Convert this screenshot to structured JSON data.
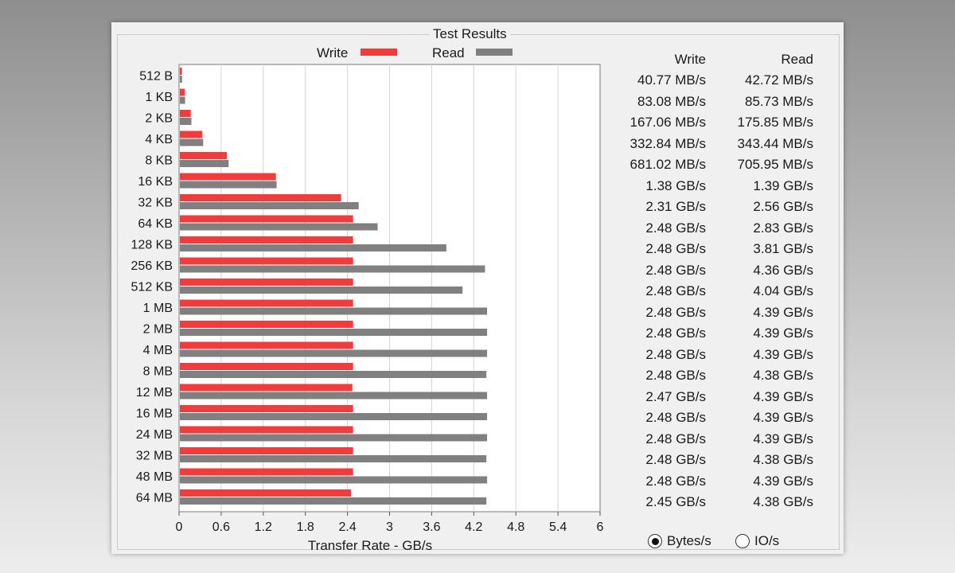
{
  "group_title": "Test Results",
  "legend": {
    "write": "Write",
    "read": "Read"
  },
  "columns": {
    "write": "Write",
    "read": "Read"
  },
  "radio": {
    "bytes_label": "Bytes/s",
    "ios_label": "IO/s",
    "selected": "bytes"
  },
  "colors": {
    "write": "#f03c3c",
    "read": "#808080",
    "grid": "#d4d4d4"
  },
  "rows": [
    {
      "size": "512 B",
      "write_text": "40.77 MB/s",
      "read_text": "42.72 MB/s"
    },
    {
      "size": "1 KB",
      "write_text": "83.08 MB/s",
      "read_text": "85.73 MB/s"
    },
    {
      "size": "2 KB",
      "write_text": "167.06 MB/s",
      "read_text": "175.85 MB/s"
    },
    {
      "size": "4 KB",
      "write_text": "332.84 MB/s",
      "read_text": "343.44 MB/s"
    },
    {
      "size": "8 KB",
      "write_text": "681.02 MB/s",
      "read_text": "705.95 MB/s"
    },
    {
      "size": "16 KB",
      "write_text": "1.38 GB/s",
      "read_text": "1.39 GB/s"
    },
    {
      "size": "32 KB",
      "write_text": "2.31 GB/s",
      "read_text": "2.56 GB/s"
    },
    {
      "size": "64 KB",
      "write_text": "2.48 GB/s",
      "read_text": "2.83 GB/s"
    },
    {
      "size": "128 KB",
      "write_text": "2.48 GB/s",
      "read_text": "3.81 GB/s"
    },
    {
      "size": "256 KB",
      "write_text": "2.48 GB/s",
      "read_text": "4.36 GB/s"
    },
    {
      "size": "512 KB",
      "write_text": "2.48 GB/s",
      "read_text": "4.04 GB/s"
    },
    {
      "size": "1 MB",
      "write_text": "2.48 GB/s",
      "read_text": "4.39 GB/s"
    },
    {
      "size": "2 MB",
      "write_text": "2.48 GB/s",
      "read_text": "4.39 GB/s"
    },
    {
      "size": "4 MB",
      "write_text": "2.48 GB/s",
      "read_text": "4.39 GB/s"
    },
    {
      "size": "8 MB",
      "write_text": "2.48 GB/s",
      "read_text": "4.38 GB/s"
    },
    {
      "size": "12 MB",
      "write_text": "2.47 GB/s",
      "read_text": "4.39 GB/s"
    },
    {
      "size": "16 MB",
      "write_text": "2.48 GB/s",
      "read_text": "4.39 GB/s"
    },
    {
      "size": "24 MB",
      "write_text": "2.48 GB/s",
      "read_text": "4.39 GB/s"
    },
    {
      "size": "32 MB",
      "write_text": "2.48 GB/s",
      "read_text": "4.38 GB/s"
    },
    {
      "size": "48 MB",
      "write_text": "2.48 GB/s",
      "read_text": "4.39 GB/s"
    },
    {
      "size": "64 MB",
      "write_text": "2.45 GB/s",
      "read_text": "4.38 GB/s"
    }
  ],
  "chart_data": {
    "type": "bar",
    "orientation": "horizontal",
    "title": "",
    "xlabel": "Transfer Rate - GB/s",
    "ylabel": "",
    "xlim": [
      0,
      6
    ],
    "xticks": [
      "0",
      "0.6",
      "1.2",
      "1.8",
      "2.4",
      "3",
      "3.6",
      "4.2",
      "4.8",
      "5.4",
      "6"
    ],
    "grid": true,
    "legend_position": "top",
    "categories": [
      "512 B",
      "1 KB",
      "2 KB",
      "4 KB",
      "8 KB",
      "16 KB",
      "32 KB",
      "64 KB",
      "128 KB",
      "256 KB",
      "512 KB",
      "1 MB",
      "2 MB",
      "4 MB",
      "8 MB",
      "12 MB",
      "16 MB",
      "24 MB",
      "32 MB",
      "48 MB",
      "64 MB"
    ],
    "series": [
      {
        "name": "Write",
        "values": [
          0.04077,
          0.08308,
          0.16706,
          0.33284,
          0.68102,
          1.38,
          2.31,
          2.48,
          2.48,
          2.48,
          2.48,
          2.48,
          2.48,
          2.48,
          2.48,
          2.47,
          2.48,
          2.48,
          2.48,
          2.48,
          2.45
        ]
      },
      {
        "name": "Read",
        "values": [
          0.04272,
          0.08573,
          0.17585,
          0.34344,
          0.70595,
          1.39,
          2.56,
          2.83,
          3.81,
          4.36,
          4.04,
          4.39,
          4.39,
          4.39,
          4.38,
          4.39,
          4.39,
          4.39,
          4.38,
          4.39,
          4.38
        ]
      }
    ]
  }
}
